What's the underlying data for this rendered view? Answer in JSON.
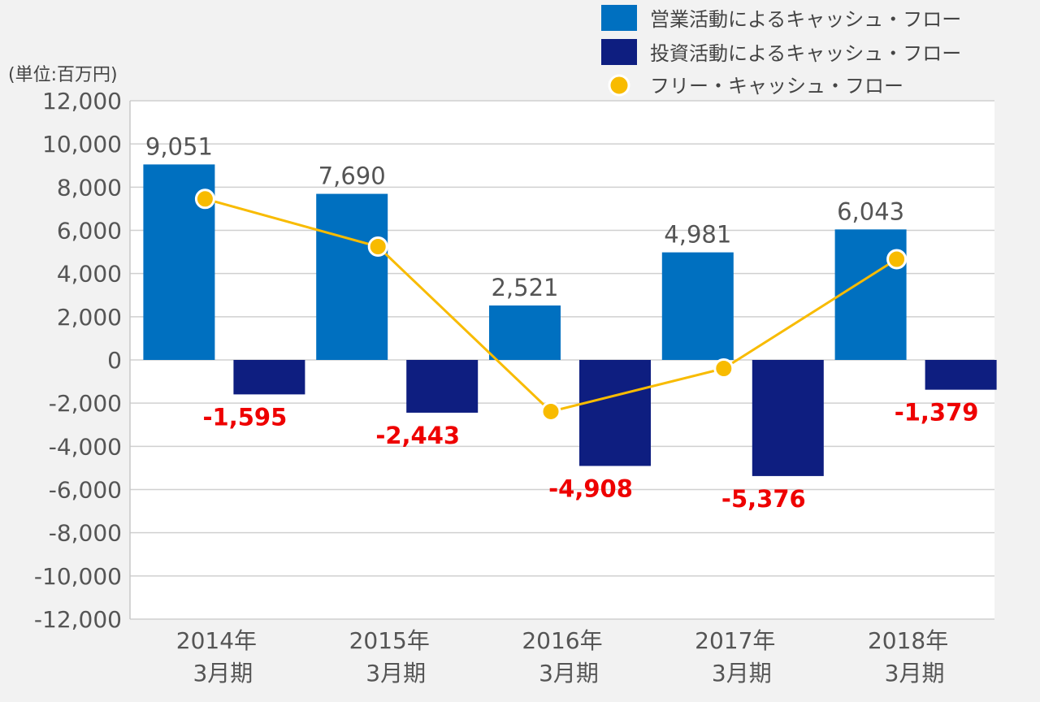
{
  "chart_data": {
    "type": "bar",
    "unit_label": "(単位:百万円)",
    "categories": [
      [
        "2014年",
        "3月期"
      ],
      [
        "2015年",
        "3月期"
      ],
      [
        "2016年",
        "3月期"
      ],
      [
        "2017年",
        "3月期"
      ],
      [
        "2018年",
        "3月期"
      ]
    ],
    "series": [
      {
        "name": "営業活動によるキャッシュ・フロー",
        "kind": "bar",
        "color": "#0070c0",
        "values": [
          9051,
          7690,
          2521,
          4981,
          6043
        ]
      },
      {
        "name": "投資活動によるキャッシュ・フロー",
        "kind": "bar",
        "color": "#0e1e80",
        "values": [
          -1595,
          -2443,
          -4908,
          -5376,
          -1379
        ]
      },
      {
        "name": "フリー・キャッシュ・フロー",
        "kind": "line",
        "color": "#f8bb00",
        "values": [
          7456,
          5247,
          -2387,
          -395,
          4664
        ]
      }
    ],
    "data_labels": {
      "positive": [
        "9,051",
        "7,690",
        "2,521",
        "4,981",
        "6,043"
      ],
      "negative": [
        "-1,595",
        "-2,443",
        "-4,908",
        "-5,376",
        "-1,379"
      ],
      "positive_color": "#555555",
      "negative_color": "#ee0000"
    },
    "yticks": [
      "12,000",
      "10,000",
      "8,000",
      "6,000",
      "4,000",
      "2,000",
      "0",
      "-2,000",
      "-4,000",
      "-6,000",
      "-8,000",
      "-10,000",
      "-12,000"
    ],
    "ylim": [
      -12000,
      12000
    ],
    "ystep": 2000,
    "grid": true,
    "legend_position": "top-right",
    "title": "",
    "xlabel": "",
    "ylabel": ""
  }
}
